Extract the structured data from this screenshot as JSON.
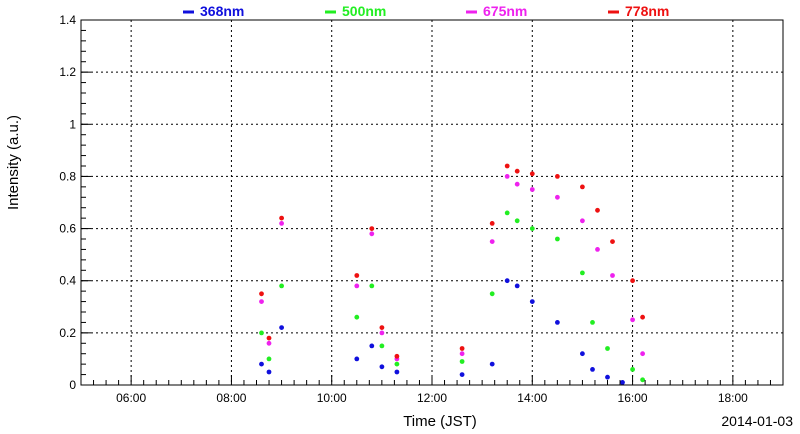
{
  "chart_data": {
    "type": "scatter",
    "title": "",
    "xlabel": "Time (JST)",
    "ylabel": "Intensity (a.u.)",
    "date_label": "2014-01-03",
    "xlim": [
      5.0,
      19.0
    ],
    "ylim": [
      0,
      1.4
    ],
    "x_ticks": [
      {
        "value": 6,
        "label": "06:00"
      },
      {
        "value": 8,
        "label": "08:00"
      },
      {
        "value": 10,
        "label": "10:00"
      },
      {
        "value": 12,
        "label": "12:00"
      },
      {
        "value": 14,
        "label": "14:00"
      },
      {
        "value": 16,
        "label": "16:00"
      },
      {
        "value": 18,
        "label": "18:00"
      }
    ],
    "y_ticks": [
      {
        "value": 0,
        "label": "0"
      },
      {
        "value": 0.2,
        "label": "0.2"
      },
      {
        "value": 0.4,
        "label": "0.4"
      },
      {
        "value": 0.6,
        "label": "0.6"
      },
      {
        "value": 0.8,
        "label": "0.8"
      },
      {
        "value": 1.0,
        "label": "1"
      },
      {
        "value": 1.2,
        "label": "1.2"
      },
      {
        "value": 1.4,
        "label": "1.4"
      }
    ],
    "grid": true,
    "legend_position": "top",
    "series": [
      {
        "name": "368nm",
        "color": "#1010dd",
        "values": [
          [
            8.6,
            0.08
          ],
          [
            8.75,
            0.05
          ],
          [
            9.0,
            0.22
          ],
          [
            10.5,
            0.1
          ],
          [
            10.8,
            0.15
          ],
          [
            11.0,
            0.07
          ],
          [
            11.3,
            0.05
          ],
          [
            12.6,
            0.04
          ],
          [
            13.2,
            0.08
          ],
          [
            13.5,
            0.4
          ],
          [
            13.7,
            0.38
          ],
          [
            14.0,
            0.32
          ],
          [
            14.5,
            0.24
          ],
          [
            15.0,
            0.12
          ],
          [
            15.2,
            0.06
          ],
          [
            15.5,
            0.03
          ],
          [
            15.8,
            0.01
          ]
        ]
      },
      {
        "name": "500nm",
        "color": "#22ee22",
        "values": [
          [
            8.6,
            0.2
          ],
          [
            8.75,
            0.1
          ],
          [
            9.0,
            0.38
          ],
          [
            10.5,
            0.26
          ],
          [
            10.8,
            0.38
          ],
          [
            11.0,
            0.15
          ],
          [
            11.3,
            0.08
          ],
          [
            12.6,
            0.09
          ],
          [
            13.2,
            0.35
          ],
          [
            13.5,
            0.66
          ],
          [
            13.7,
            0.63
          ],
          [
            14.0,
            0.6
          ],
          [
            14.5,
            0.56
          ],
          [
            15.0,
            0.43
          ],
          [
            15.2,
            0.24
          ],
          [
            15.5,
            0.14
          ],
          [
            16.0,
            0.06
          ],
          [
            16.2,
            0.02
          ]
        ]
      },
      {
        "name": "675nm",
        "color": "#ee22ee",
        "values": [
          [
            8.6,
            0.32
          ],
          [
            8.75,
            0.16
          ],
          [
            9.0,
            0.62
          ],
          [
            10.5,
            0.38
          ],
          [
            10.8,
            0.58
          ],
          [
            11.0,
            0.2
          ],
          [
            11.3,
            0.1
          ],
          [
            12.6,
            0.12
          ],
          [
            13.2,
            0.55
          ],
          [
            13.5,
            0.8
          ],
          [
            13.7,
            0.77
          ],
          [
            14.0,
            0.75
          ],
          [
            14.5,
            0.72
          ],
          [
            15.0,
            0.63
          ],
          [
            15.3,
            0.52
          ],
          [
            15.6,
            0.42
          ],
          [
            16.0,
            0.25
          ],
          [
            16.2,
            0.12
          ]
        ]
      },
      {
        "name": "778nm",
        "color": "#ee1111",
        "values": [
          [
            8.6,
            0.35
          ],
          [
            8.75,
            0.18
          ],
          [
            9.0,
            0.64
          ],
          [
            10.5,
            0.42
          ],
          [
            10.8,
            0.6
          ],
          [
            11.0,
            0.22
          ],
          [
            11.3,
            0.11
          ],
          [
            12.6,
            0.14
          ],
          [
            13.2,
            0.62
          ],
          [
            13.5,
            0.84
          ],
          [
            13.7,
            0.82
          ],
          [
            14.0,
            0.81
          ],
          [
            14.5,
            0.8
          ],
          [
            15.0,
            0.76
          ],
          [
            15.3,
            0.67
          ],
          [
            15.6,
            0.55
          ],
          [
            16.0,
            0.4
          ],
          [
            16.2,
            0.26
          ]
        ]
      }
    ]
  }
}
